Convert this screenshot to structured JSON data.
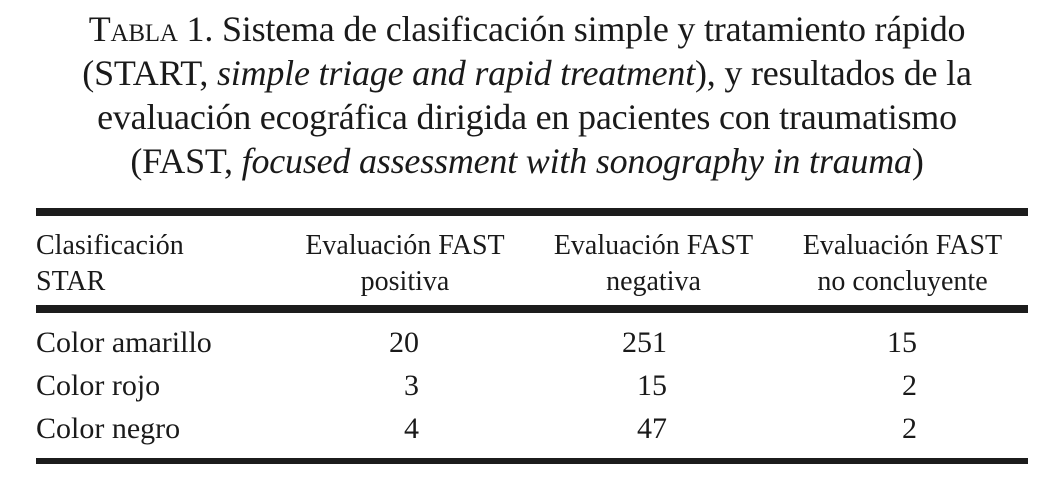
{
  "title": {
    "line1_label": "Tabla 1.",
    "line1_rest": " Sistema de clasificación simple y tratamiento rápido",
    "line2_pre": "(START, ",
    "line2_italic": "simple triage and rapid treatment",
    "line2_post": "), y resultados de la",
    "line3": "evaluación ecográfica dirigida en pacientes con traumatismo",
    "line4_pre": "(FAST, ",
    "line4_italic": "focused assessment with sonography in trauma",
    "line4_post": ")"
  },
  "table": {
    "columns": [
      {
        "line1": "Clasificación",
        "line2": "STAR"
      },
      {
        "line1": "Evaluación FAST",
        "line2": "positiva"
      },
      {
        "line1": "Evaluación FAST",
        "line2": "negativa"
      },
      {
        "line1": "Evaluación FAST",
        "line2": "no concluyente"
      }
    ],
    "rows": [
      {
        "label": "Color amarillo",
        "values": [
          "20",
          "251",
          "15"
        ]
      },
      {
        "label": "Color rojo",
        "values": [
          "3",
          "15",
          "2"
        ]
      },
      {
        "label": "Color negro",
        "values": [
          "4",
          "47",
          "2"
        ]
      }
    ]
  },
  "colors": {
    "text": "#1a1a1a",
    "rule": "#1c1c1c",
    "background": "#ffffff"
  },
  "chart_data": {
    "type": "table",
    "title": "Tabla 1. Sistema de clasificación simple y tratamiento rápido (START, simple triage and rapid treatment), y resultados de la evaluación ecográfica dirigida en pacientes con traumatismo (FAST, focused assessment with sonography in trauma)",
    "columns": [
      "Clasificación STAR",
      "Evaluación FAST positiva",
      "Evaluación FAST negativa",
      "Evaluación FAST no concluyente"
    ],
    "rows": [
      [
        "Color amarillo",
        20,
        251,
        15
      ],
      [
        "Color rojo",
        3,
        15,
        2
      ],
      [
        "Color negro",
        4,
        47,
        2
      ]
    ]
  }
}
